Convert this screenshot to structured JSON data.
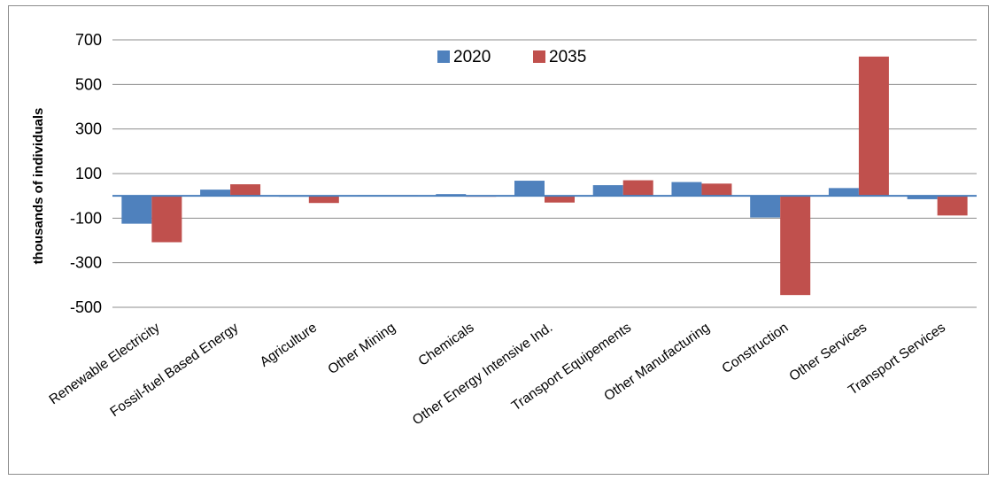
{
  "chart_data": {
    "type": "bar",
    "ylabel": "thousands of individuals",
    "xlabel": "",
    "ylim": [
      -500,
      700
    ],
    "yticks": [
      700,
      500,
      300,
      100,
      -100,
      -300,
      -500
    ],
    "grid": true,
    "legend_position": "top-center",
    "categories": [
      "Renewable Electricity",
      "Fossil-fuel Based Energy",
      "Agriculture",
      "Other Mining",
      "Chemicals",
      "Other Energy Intensive Ind.",
      "Transport Equipements",
      "Other Manufacturing",
      "Construction",
      "Other Services",
      "Transport Services"
    ],
    "series": [
      {
        "name": "2020",
        "color": "#4f81bd",
        "values": [
          -125,
          28,
          0,
          3,
          8,
          68,
          48,
          62,
          -97,
          35,
          -15
        ]
      },
      {
        "name": "2035",
        "color": "#c0504d",
        "values": [
          -208,
          52,
          -32,
          3,
          0,
          -30,
          70,
          55,
          -445,
          625,
          -88
        ]
      }
    ]
  }
}
